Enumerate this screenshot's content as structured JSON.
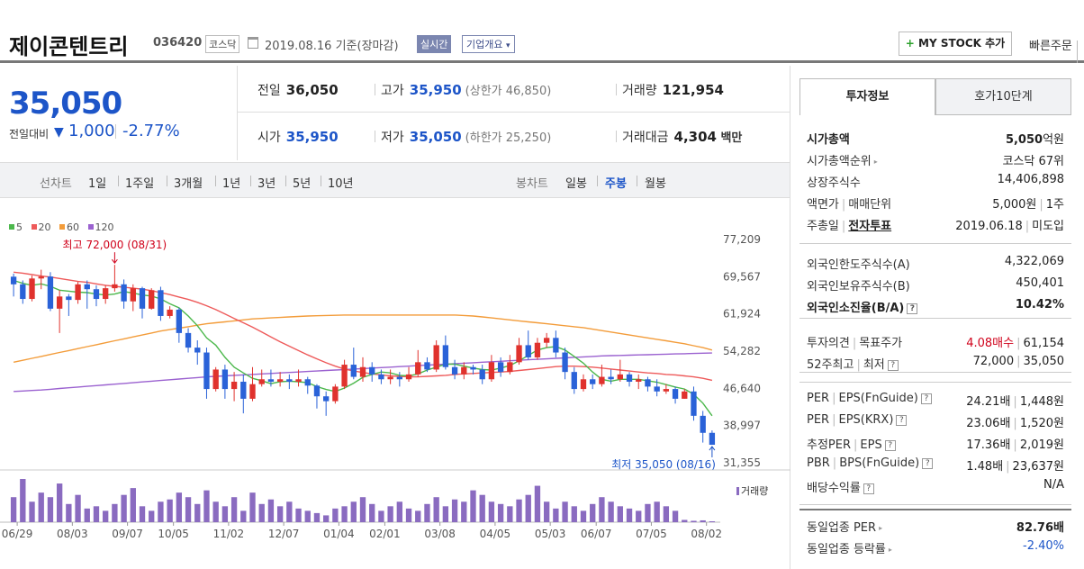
{
  "header": {
    "company_name": "제이콘텐트리",
    "code": "036420",
    "market": "코스닥",
    "date": "2019.08.16",
    "basis": "기준(장마감)",
    "realtime": "실시간",
    "company_info": "기업개요",
    "company_info_arrow": "▾",
    "mystock_plus": "+",
    "mystock_label": "MY STOCK 추가",
    "quick_order": "빠른주문"
  },
  "price": {
    "current": "35,050",
    "change_label": "전일대비",
    "change_arrow": "▼",
    "change_value": "1,000",
    "change_pct": "-2.77%"
  },
  "stats": {
    "prev_close_label": "전일",
    "prev_close": "36,050",
    "high_label": "고가",
    "high": "35,950",
    "upper_limit": "(상한가 46,850)",
    "volume_label": "거래량",
    "volume": "121,954",
    "open_label": "시가",
    "open": "35,950",
    "low_label": "저가",
    "low": "35,050",
    "lower_limit": "(하한가 25,250)",
    "amount_label": "거래대금",
    "amount": "4,304",
    "amount_unit": "백만"
  },
  "period_bar": {
    "line_label": "선차트",
    "line_options": [
      "1일",
      "1주일",
      "3개월",
      "1년",
      "3년",
      "5년",
      "10년"
    ],
    "candle_label": "봉차트",
    "candle_options": [
      "일봉",
      "주봉",
      "월봉"
    ],
    "candle_active": "주봉"
  },
  "colors": {
    "up": "#e0322d",
    "down": "#2a62d8",
    "ma5": "#4cb84c",
    "ma20": "#ee5a5a",
    "ma60": "#f39c3a",
    "ma120": "#9b62d0",
    "volume": "#8a6bc0"
  },
  "chart_data": {
    "type": "candlestick",
    "legend": [
      {
        "name": "5",
        "color": "#4cb84c"
      },
      {
        "name": "20",
        "color": "#ee5a5a"
      },
      {
        "name": "60",
        "color": "#f39c3a"
      },
      {
        "name": "120",
        "color": "#9b62d0"
      }
    ],
    "ylim": [
      31355,
      77209
    ],
    "y_ticks": [
      "77,209",
      "69,567",
      "61,924",
      "54,282",
      "46,640",
      "38,997",
      "31,355"
    ],
    "x_ticks": [
      "06/29",
      "08/03",
      "09/07",
      "10/05",
      "11/02",
      "12/07",
      "01/04",
      "02/01",
      "03/08",
      "04/05",
      "05/03",
      "06/07",
      "07/05",
      "08/02"
    ],
    "max_label": "최고 72,000 (08/31)",
    "min_label": "최저 35,050 (08/16)",
    "volume_label": "거래량",
    "candles": [
      [
        69567,
        68000,
        70200,
        65500
      ],
      [
        68000,
        65000,
        68800,
        64000
      ],
      [
        65000,
        69200,
        69800,
        64500
      ],
      [
        69200,
        69600,
        71000,
        67000
      ],
      [
        69600,
        63000,
        70500,
        62500
      ],
      [
        63000,
        65500,
        66800,
        58000
      ],
      [
        65500,
        64800,
        66000,
        61500
      ],
      [
        64800,
        68000,
        68500,
        64000
      ],
      [
        68000,
        67000,
        68800,
        63000
      ],
      [
        67000,
        65000,
        67800,
        63500
      ],
      [
        65000,
        67200,
        67800,
        64000
      ],
      [
        67200,
        68000,
        72000,
        66500
      ],
      [
        68000,
        64500,
        69000,
        63000
      ],
      [
        64500,
        67200,
        68000,
        62500
      ],
      [
        67200,
        63000,
        67500,
        61000
      ],
      [
        63000,
        66800,
        67200,
        62800
      ],
      [
        66800,
        61500,
        67500,
        60500
      ],
      [
        61500,
        62800,
        63500,
        61000
      ],
      [
        62800,
        58000,
        63200,
        56000
      ],
      [
        58000,
        55000,
        59000,
        54000
      ],
      [
        55000,
        54000,
        56500,
        51500
      ],
      [
        54000,
        46500,
        55000,
        44500
      ],
      [
        46500,
        50500,
        51000,
        46000
      ],
      [
        50500,
        46500,
        51500,
        44500
      ],
      [
        46500,
        48000,
        50000,
        44000
      ],
      [
        48000,
        44500,
        49500,
        41500
      ],
      [
        44500,
        47500,
        51000,
        44000
      ],
      [
        47500,
        48500,
        50500,
        47000
      ],
      [
        48500,
        48000,
        50500,
        47000
      ],
      [
        48000,
        48500,
        50000,
        47000
      ],
      [
        48500,
        48000,
        49500,
        46500
      ],
      [
        48000,
        48500,
        50500,
        47000
      ],
      [
        48500,
        47200,
        49000,
        45500
      ],
      [
        47200,
        45000,
        47500,
        42500
      ],
      [
        45000,
        44000,
        46000,
        41000
      ],
      [
        44000,
        47000,
        47500,
        43500
      ],
      [
        47000,
        51500,
        52500,
        46500
      ],
      [
        51500,
        49000,
        55000,
        48500
      ],
      [
        49000,
        51000,
        53000,
        48000
      ],
      [
        51000,
        49500,
        52000,
        48000
      ],
      [
        49500,
        48500,
        50500,
        47500
      ],
      [
        48500,
        49000,
        50500,
        47500
      ],
      [
        49000,
        48500,
        50000,
        47000
      ],
      [
        48500,
        49500,
        51000,
        48000
      ],
      [
        49500,
        52000,
        54500,
        49000
      ],
      [
        52000,
        50500,
        53000,
        50000
      ],
      [
        50500,
        55500,
        56500,
        50000
      ],
      [
        55500,
        51000,
        57500,
        50500
      ],
      [
        51000,
        49500,
        52500,
        48500
      ],
      [
        49500,
        51000,
        52000,
        48500
      ],
      [
        51000,
        50500,
        51500,
        49500
      ],
      [
        50500,
        48500,
        51500,
        47500
      ],
      [
        48500,
        52000,
        53500,
        48000
      ],
      [
        52000,
        50000,
        53000,
        49000
      ],
      [
        50000,
        52000,
        53500,
        49500
      ],
      [
        52000,
        55500,
        57000,
        51500
      ],
      [
        55500,
        53000,
        58500,
        52500
      ],
      [
        53000,
        56000,
        57000,
        52500
      ],
      [
        56000,
        57000,
        58000,
        55000
      ],
      [
        57000,
        54000,
        58500,
        53000
      ],
      [
        54000,
        50000,
        55000,
        48500
      ],
      [
        50000,
        46500,
        51000,
        45500
      ],
      [
        46500,
        48500,
        49500,
        46000
      ],
      [
        48500,
        47500,
        49500,
        46500
      ],
      [
        47500,
        49000,
        51500,
        47000
      ],
      [
        49000,
        48500,
        50500,
        47500
      ],
      [
        48500,
        49500,
        52500,
        48000
      ],
      [
        49500,
        48000,
        50000,
        47000
      ],
      [
        48000,
        48500,
        49500,
        46500
      ],
      [
        48500,
        47000,
        49000,
        46000
      ],
      [
        47000,
        46000,
        48500,
        45000
      ],
      [
        46000,
        46500,
        47500,
        45500
      ],
      [
        46500,
        44500,
        47000,
        43500
      ],
      [
        44500,
        46000,
        46500,
        44500
      ],
      [
        46000,
        41000,
        47000,
        40000
      ],
      [
        41000,
        37500,
        42000,
        35500
      ],
      [
        37500,
        35050,
        38000,
        35050
      ]
    ],
    "ma5": [
      68800,
      68200,
      67800,
      68100,
      67600,
      66800,
      66600,
      66400,
      66300,
      66000,
      65800,
      66000,
      66500,
      66200,
      65800,
      65600,
      65000,
      64000,
      63200,
      61500,
      59500,
      57000,
      55500,
      53000,
      51000,
      49800,
      48700,
      48200,
      47600,
      48000,
      48100,
      48000,
      47800,
      47000,
      46400,
      46000,
      46700,
      47700,
      48900,
      49500,
      50000,
      49800,
      49300,
      49200,
      49600,
      50400,
      51000,
      51600,
      51600,
      51200,
      50800,
      50500,
      50400,
      50800,
      51300,
      52300,
      53400,
      54500,
      55000,
      55200,
      54500,
      53200,
      51800,
      50000,
      48500,
      48100,
      48500,
      48500,
      48500,
      48200,
      47900,
      47400,
      46900,
      46500,
      45400,
      43600,
      41000
    ],
    "ma20": [
      70500,
      70300,
      70000,
      69700,
      69500,
      69200,
      68900,
      68600,
      68400,
      68100,
      67800,
      67600,
      67400,
      67200,
      67000,
      66700,
      66300,
      65900,
      65400,
      64900,
      64300,
      63600,
      62800,
      61900,
      61000,
      60100,
      59200,
      58200,
      57200,
      56200,
      55300,
      54400,
      53500,
      52700,
      51900,
      51200,
      50600,
      50200,
      49900,
      49600,
      49400,
      49200,
      49100,
      49000,
      49000,
      49100,
      49200,
      49300,
      49500,
      49600,
      49700,
      49800,
      49900,
      50000,
      50100,
      50300,
      50500,
      50700,
      50900,
      51100,
      51200,
      51200,
      51100,
      51000,
      50800,
      50600,
      50400,
      50200,
      50000,
      49800,
      49700,
      49500,
      49400,
      49200,
      49000,
      48700,
      48300
    ],
    "ma60": [
      52000,
      52400,
      52800,
      53200,
      53600,
      54000,
      54400,
      54800,
      55200,
      55600,
      56000,
      56400,
      56800,
      57200,
      57600,
      58000,
      58400,
      58700,
      59000,
      59300,
      59600,
      59900,
      60100,
      60300,
      60500,
      60700,
      60900,
      61000,
      61100,
      61200,
      61300,
      61400,
      61500,
      61550,
      61600,
      61650,
      61700,
      61700,
      61700,
      61700,
      61700,
      61700,
      61700,
      61700,
      61700,
      61700,
      61700,
      61700,
      61700,
      61600,
      61500,
      61300,
      61100,
      60900,
      60700,
      60500,
      60300,
      60100,
      59900,
      59700,
      59500,
      59300,
      59100,
      58800,
      58500,
      58200,
      57900,
      57600,
      57300,
      57000,
      56700,
      56400,
      56100,
      55800,
      55400,
      55000,
      54500
    ],
    "ma120": [
      46000,
      46100,
      46200,
      46300,
      46450,
      46600,
      46750,
      46900,
      47050,
      47200,
      47350,
      47500,
      47650,
      47800,
      47950,
      48100,
      48250,
      48400,
      48550,
      48700,
      48850,
      49000,
      49100,
      49200,
      49300,
      49400,
      49500,
      49600,
      49700,
      49800,
      49900,
      50000,
      50100,
      50200,
      50300,
      50400,
      50500,
      50600,
      50700,
      50800,
      50900,
      51000,
      51100,
      51200,
      51300,
      51400,
      51500,
      51600,
      51700,
      51800,
      51900,
      52000,
      52100,
      52200,
      52300,
      52400,
      52500,
      52600,
      52700,
      52800,
      52900,
      53000,
      53100,
      53200,
      53300,
      53350,
      53400,
      53450,
      53500,
      53550,
      53600,
      53650,
      53700,
      53750,
      53800,
      53850,
      53900
    ],
    "volume": [
      55,
      95,
      45,
      65,
      55,
      85,
      40,
      60,
      30,
      35,
      25,
      40,
      60,
      75,
      35,
      25,
      45,
      50,
      65,
      55,
      40,
      70,
      45,
      35,
      55,
      25,
      65,
      40,
      50,
      35,
      45,
      30,
      25,
      20,
      15,
      30,
      35,
      45,
      55,
      40,
      25,
      35,
      45,
      30,
      25,
      40,
      55,
      35,
      50,
      45,
      70,
      60,
      45,
      40,
      35,
      50,
      60,
      80,
      45,
      30,
      45,
      35,
      25,
      40,
      55,
      45,
      35,
      30,
      25,
      40,
      45,
      35,
      25,
      5,
      3,
      4,
      2
    ]
  },
  "right_panel": {
    "tab_invest": "투자정보",
    "tab_orderbook": "호가10단계",
    "market_cap_label": "시가총액",
    "market_cap": "5,050",
    "market_cap_unit": "억원",
    "market_cap_rank_label": "시가총액순위",
    "market_cap_rank": "코스닥 67위",
    "shares_label": "상장주식수",
    "shares": "14,406,898",
    "par_label": "액면가",
    "unit_label": "매매단위",
    "par": "5,000원",
    "unit": "1주",
    "agm_label": "주총일",
    "evote_label": "전자투표",
    "agm_date": "2019.06.18",
    "evote": "미도입",
    "foreign_limit_label": "외국인한도주식수(A)",
    "foreign_limit": "4,322,069",
    "foreign_hold_label": "외국인보유주식수(B)",
    "foreign_hold": "450,401",
    "foreign_ratio_label": "외국인소진율(B/A)",
    "foreign_ratio": "10.42%",
    "opinion_label": "투자의견",
    "target_label": "목표주가",
    "opinion": "4.08매수",
    "target": "61,154",
    "w52_high_label": "52주최고",
    "w52_low_label": "최저",
    "w52_high": "72,000",
    "w52_low": "35,050",
    "per_fn_label": "PER",
    "eps_fn_label": "EPS(FnGuide)",
    "per_fn": "24.21배",
    "eps_fn": "1,448원",
    "per_krx_label": "PER",
    "eps_krx_label": "EPS(KRX)",
    "per_krx": "23.06배",
    "eps_krx": "1,520원",
    "est_per_label": "추정PER",
    "est_eps_label": "EPS",
    "est_per": "17.36배",
    "est_eps": "2,019원",
    "pbr_label": "PBR",
    "bps_label": "BPS(FnGuide)",
    "pbr": "1.48배",
    "bps": "23,637원",
    "div_label": "배당수익률",
    "div": "N/A",
    "ind_per_label": "동일업종 PER",
    "ind_per": "82.76배",
    "ind_chg_label": "동일업종 등락률",
    "ind_chg": "-2.40%",
    "qmark": "?"
  }
}
